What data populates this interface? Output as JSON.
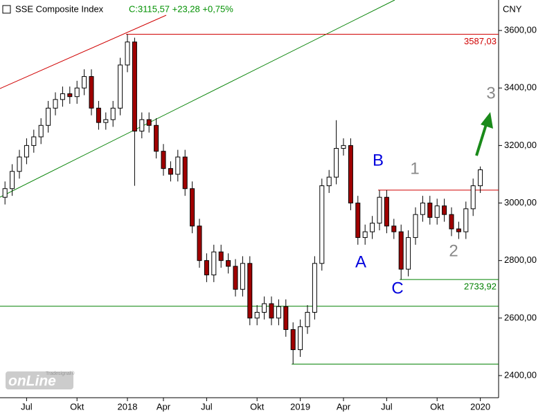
{
  "chart_data": {
    "type": "candlestick",
    "title": "SSE Composite Index",
    "last_quote": "C:3115,57 +23,28 +0,75%",
    "unit": "CNY",
    "logo": "onLine",
    "logo_small": "Tradesignal®",
    "up_color": "#000000",
    "down_color": "#a00000",
    "categories": [
      null,
      null,
      null,
      "Jul",
      null,
      null,
      null,
      null,
      null,
      null,
      "Okt",
      null,
      null,
      null,
      null,
      null,
      null,
      "2018",
      null,
      null,
      null,
      null,
      "Apr",
      null,
      null,
      null,
      null,
      null,
      "Jul",
      null,
      null,
      null,
      null,
      null,
      null,
      "Okt",
      null,
      null,
      null,
      null,
      null,
      "2019",
      null,
      null,
      null,
      null,
      null,
      "Apr",
      null,
      null,
      null,
      null,
      null,
      "Jul",
      null,
      null,
      null,
      null,
      null,
      null,
      "Okt",
      null,
      null,
      null,
      null,
      null,
      "2020"
    ],
    "open": [
      3020,
      3050,
      3110,
      3160,
      3200,
      3230,
      3270,
      3330,
      3360,
      3380,
      3370,
      3400,
      3440,
      3330,
      3280,
      3290,
      3330,
      3480,
      3560,
      3250,
      3290,
      3270,
      3180,
      3120,
      3100,
      3160,
      3050,
      2920,
      2800,
      2750,
      2830,
      2800,
      2780,
      2700,
      2790,
      2600,
      2620,
      2650,
      2600,
      2640,
      2560,
      2490,
      2570,
      2620,
      2790,
      3060,
      3090,
      3190,
      3200,
      3000,
      2880,
      2900,
      2930,
      3020,
      2920,
      2900,
      2770,
      2880,
      2960,
      3000,
      2950,
      2990,
      2960,
      2910,
      2900,
      2980,
      3060
    ],
    "high": [
      3075,
      3135,
      3185,
      3225,
      3255,
      3295,
      3355,
      3385,
      3405,
      3405,
      3425,
      3465,
      3465,
      3355,
      3315,
      3355,
      3505,
      3587.03,
      3575,
      3315,
      3315,
      3295,
      3205,
      3145,
      3185,
      3185,
      3075,
      2945,
      2825,
      2855,
      2855,
      2825,
      2805,
      2815,
      2815,
      2645,
      2675,
      2675,
      2665,
      2665,
      2585,
      2595,
      2645,
      2815,
      3085,
      3115,
      3288,
      3225,
      3225,
      3025,
      2925,
      2955,
      3045,
      3045,
      2945,
      2925,
      2905,
      2985,
      3025,
      3025,
      3015,
      3015,
      2985,
      2935,
      3005,
      3085,
      3127
    ],
    "low": [
      2995,
      3025,
      3085,
      3135,
      3175,
      3205,
      3245,
      3305,
      3335,
      3345,
      3345,
      3375,
      3305,
      3255,
      3255,
      3265,
      3305,
      3455,
      3060,
      3225,
      3245,
      3155,
      3095,
      3075,
      3075,
      3025,
      2895,
      2775,
      2725,
      2725,
      2775,
      2755,
      2675,
      2675,
      2575,
      2575,
      2595,
      2575,
      2575,
      2535,
      2440,
      2465,
      2545,
      2595,
      2765,
      3035,
      3065,
      3165,
      2975,
      2855,
      2855,
      2875,
      2905,
      2895,
      2875,
      2733.92,
      2745,
      2855,
      2935,
      2925,
      2925,
      2935,
      2885,
      2875,
      2875,
      2955,
      3035
    ],
    "close": [
      3050,
      3110,
      3160,
      3200,
      3230,
      3270,
      3330,
      3360,
      3380,
      3370,
      3400,
      3440,
      3330,
      3280,
      3290,
      3330,
      3480,
      3560,
      3250,
      3290,
      3270,
      3180,
      3120,
      3100,
      3160,
      3050,
      2920,
      2800,
      2750,
      2830,
      2800,
      2780,
      2700,
      2790,
      2600,
      2620,
      2650,
      2600,
      2640,
      2560,
      2490,
      2570,
      2620,
      2790,
      3060,
      3090,
      3190,
      3200,
      3000,
      2880,
      2900,
      2930,
      3020,
      2920,
      2900,
      2770,
      2880,
      2960,
      3000,
      2950,
      2990,
      2960,
      2910,
      2900,
      2980,
      3060,
      3115.57
    ],
    "ylim": [
      2323,
      3706
    ],
    "yticks": [
      {
        "value": 2400,
        "label": "2400,00"
      },
      {
        "value": 2600,
        "label": "2600,00"
      },
      {
        "value": 2800,
        "label": "2800,00"
      },
      {
        "value": 3000,
        "label": "3000,00"
      },
      {
        "value": 3200,
        "label": "3200,00"
      },
      {
        "value": 3400,
        "label": "3400,00"
      },
      {
        "value": 3600,
        "label": "3600,00"
      }
    ],
    "levels": [
      {
        "value": 3587.03,
        "label": "3587,03",
        "color": "#d00000"
      },
      {
        "value": 2733.92,
        "label": "2733,92",
        "color": "#008000"
      },
      {
        "value": 3045,
        "color": "#d00000"
      },
      {
        "value": 2641,
        "color": "#008000"
      },
      {
        "value": 2440,
        "color": "#008000"
      }
    ],
    "wave_labels": [
      {
        "text": "A",
        "color": "#0000dd"
      },
      {
        "text": "B",
        "color": "#0000dd"
      },
      {
        "text": "C",
        "color": "#0000dd"
      },
      {
        "text": "1",
        "color": "#888888"
      },
      {
        "text": "2",
        "color": "#888888"
      },
      {
        "text": "3",
        "color": "#888888"
      }
    ]
  }
}
